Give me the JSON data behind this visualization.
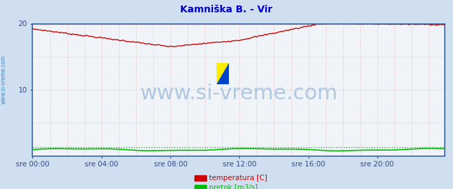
{
  "title": "Kamniška B. - Vir",
  "title_color": "#0000cc",
  "background_color": "#d0dff0",
  "plot_bg_color": "#f0f4f8",
  "grid_color": "#ddaaaa",
  "xlim": [
    0,
    287
  ],
  "ylim": [
    0,
    20
  ],
  "yticks": [
    10,
    20
  ],
  "xtick_labels": [
    "sre 00:00",
    "sre 04:00",
    "sre 08:00",
    "sre 12:00",
    "sre 16:00",
    "sre 20:00"
  ],
  "xtick_positions": [
    0,
    48,
    96,
    144,
    192,
    240
  ],
  "temp_max_line": 20.0,
  "temp_max_color": "#cc0000",
  "temp_line_color": "#cc0000",
  "flow_line_color": "#00bb00",
  "flow_max_color": "#00bb00",
  "watermark_text": "www.si-vreme.com",
  "watermark_color": "#b0c8e0",
  "watermark_fontsize": 22,
  "side_text": "www.si-vreme.com",
  "side_color": "#4488bb",
  "legend_items": [
    {
      "label": "temperatura [C]",
      "color": "#cc0000"
    },
    {
      "label": "pretok [m3/s]",
      "color": "#00bb00"
    }
  ],
  "border_color": "#3366aa",
  "tick_color": "#334488",
  "tick_fontsize": 7.5,
  "logo_yellow": "#ffee00",
  "logo_blue": "#0044cc"
}
